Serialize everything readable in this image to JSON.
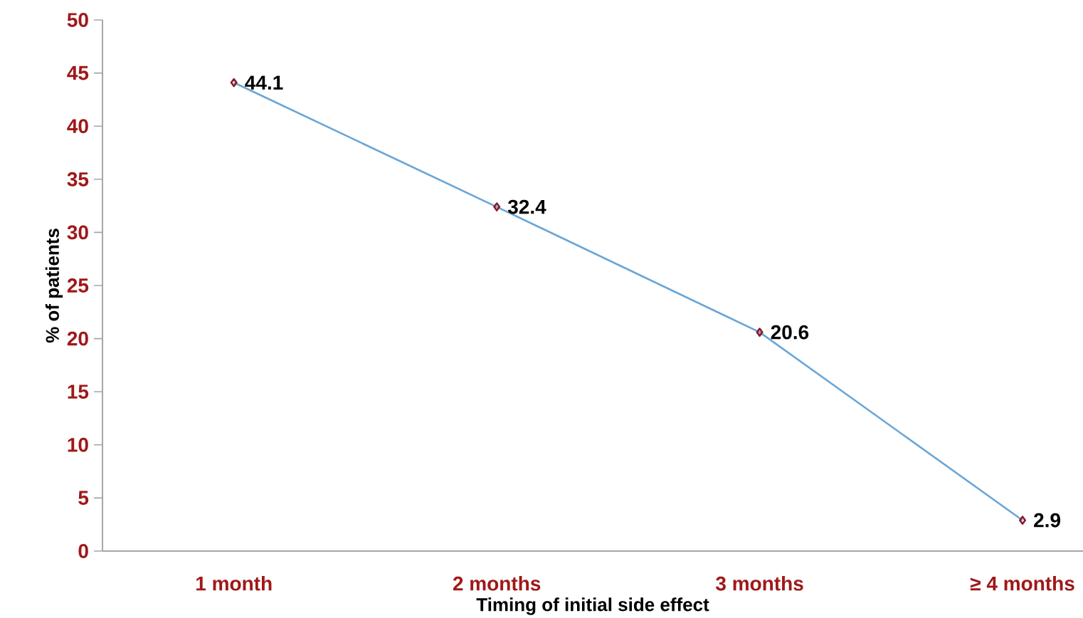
{
  "chart_data": {
    "type": "line",
    "xlabel": "Timing of initial side effect",
    "ylabel": "% of patients",
    "categories": [
      "1 month",
      "2 months",
      "3 months",
      "≥ 4 months"
    ],
    "values": [
      44.1,
      32.4,
      20.6,
      2.9
    ],
    "color": "#6aa6d6",
    "marker": "diamond",
    "data_labels": true,
    "ylim": [
      0,
      50
    ],
    "yticks": [
      0,
      5,
      10,
      15,
      20,
      25,
      30,
      35,
      40,
      45,
      50
    ],
    "grid": false
  }
}
